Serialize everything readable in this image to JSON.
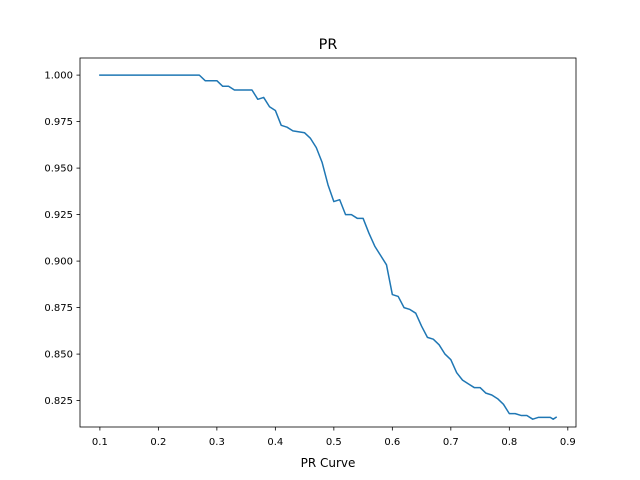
{
  "chart_data": {
    "type": "line",
    "title": "PR",
    "xlabel": "PR Curve",
    "ylabel": "",
    "xlim": [
      0.066,
      0.914
    ],
    "ylim": [
      0.8108,
      1.0092
    ],
    "xticks": [
      0.1,
      0.2,
      0.3,
      0.4,
      0.5,
      0.6,
      0.7,
      0.8,
      0.9
    ],
    "xtick_labels": [
      "0.1",
      "0.2",
      "0.3",
      "0.4",
      "0.5",
      "0.6",
      "0.7",
      "0.8",
      "0.9"
    ],
    "yticks": [
      0.825,
      0.85,
      0.875,
      0.9,
      0.925,
      0.95,
      0.975,
      1.0
    ],
    "ytick_labels": [
      "0.825",
      "0.850",
      "0.875",
      "0.900",
      "0.925",
      "0.950",
      "0.975",
      "1.000"
    ],
    "grid": false,
    "series": [
      {
        "color": "#1f77b4",
        "x": [
          0.1,
          0.27,
          0.28,
          0.3,
          0.31,
          0.32,
          0.33,
          0.34,
          0.36,
          0.37,
          0.38,
          0.39,
          0.4,
          0.41,
          0.42,
          0.43,
          0.45,
          0.46,
          0.47,
          0.48,
          0.49,
          0.5,
          0.51,
          0.52,
          0.53,
          0.54,
          0.55,
          0.56,
          0.57,
          0.58,
          0.59,
          0.6,
          0.61,
          0.62,
          0.63,
          0.64,
          0.65,
          0.66,
          0.67,
          0.68,
          0.69,
          0.7,
          0.71,
          0.72,
          0.73,
          0.74,
          0.75,
          0.76,
          0.77,
          0.78,
          0.79,
          0.8,
          0.81,
          0.82,
          0.83,
          0.84,
          0.85,
          0.86,
          0.87,
          0.875,
          0.88
        ],
        "y": [
          1.0,
          1.0,
          0.997,
          0.997,
          0.994,
          0.994,
          0.992,
          0.992,
          0.992,
          0.987,
          0.988,
          0.983,
          0.981,
          0.973,
          0.972,
          0.97,
          0.969,
          0.966,
          0.961,
          0.953,
          0.941,
          0.932,
          0.933,
          0.925,
          0.925,
          0.923,
          0.923,
          0.915,
          0.908,
          0.903,
          0.898,
          0.882,
          0.881,
          0.875,
          0.874,
          0.872,
          0.865,
          0.859,
          0.858,
          0.855,
          0.85,
          0.847,
          0.84,
          0.836,
          0.834,
          0.832,
          0.832,
          0.829,
          0.828,
          0.826,
          0.823,
          0.818,
          0.818,
          0.817,
          0.817,
          0.815,
          0.816,
          0.816,
          0.816,
          0.815,
          0.816
        ]
      }
    ]
  }
}
